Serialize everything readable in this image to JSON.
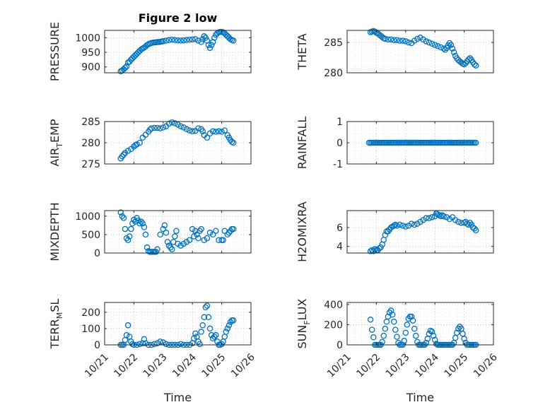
{
  "figure_title": "Figure 2 low",
  "marker_color": "#0072BD",
  "chart_data": [
    {
      "type": "scatter",
      "name": "PRESSURE",
      "ylabel": "PRESSURE",
      "xlim": [
        0,
        5
      ],
      "ylim": [
        880,
        1025
      ],
      "yticks": [
        900,
        950,
        1000
      ],
      "title": "Figure 2 low",
      "xlabel": "",
      "xticklabels": [],
      "x": [
        0.55,
        0.6,
        0.65,
        0.7,
        0.75,
        0.8,
        0.85,
        0.9,
        0.95,
        1.0,
        1.05,
        1.1,
        1.15,
        1.2,
        1.25,
        1.3,
        1.35,
        1.4,
        1.45,
        1.5,
        1.55,
        1.6,
        1.65,
        1.7,
        1.75,
        1.8,
        1.85,
        1.9,
        1.95,
        2.0,
        2.1,
        2.2,
        2.3,
        2.4,
        2.5,
        2.6,
        2.7,
        2.8,
        2.9,
        3.0,
        3.1,
        3.2,
        3.3,
        3.35,
        3.4,
        3.45,
        3.5,
        3.55,
        3.6,
        3.65,
        3.7,
        3.75,
        3.8,
        3.85,
        3.9,
        3.95,
        4.0,
        4.05,
        4.1,
        4.15,
        4.2,
        4.25,
        4.3,
        4.35,
        4.4
      ],
      "y": [
        885,
        888,
        892,
        897,
        902,
        915,
        918,
        925,
        930,
        935,
        940,
        945,
        950,
        955,
        960,
        963,
        966,
        970,
        975,
        978,
        980,
        982,
        983,
        984,
        984,
        985,
        985,
        986,
        987,
        988,
        990,
        992,
        993,
        992,
        991,
        990,
        991,
        992,
        993,
        994,
        995,
        990,
        985,
        995,
        1005,
        1000,
        990,
        975,
        965,
        975,
        985,
        1000,
        1010,
        1015,
        1018,
        1020,
        1020,
        1018,
        1015,
        1010,
        1005,
        1000,
        995,
        992,
        990
      ]
    },
    {
      "type": "scatter",
      "name": "THETA",
      "ylabel": "THETA",
      "xlim": [
        0,
        5
      ],
      "ylim": [
        280,
        287
      ],
      "yticks": [
        280,
        285
      ],
      "xlabel": "",
      "xticklabels": [],
      "x": [
        0.8,
        0.85,
        0.9,
        0.95,
        1.0,
        1.05,
        1.1,
        1.15,
        1.2,
        1.25,
        1.3,
        1.4,
        1.5,
        1.6,
        1.7,
        1.8,
        1.9,
        2.0,
        2.1,
        2.2,
        2.3,
        2.4,
        2.5,
        2.6,
        2.7,
        2.8,
        2.9,
        3.0,
        3.1,
        3.2,
        3.3,
        3.35,
        3.4,
        3.45,
        3.5,
        3.55,
        3.6,
        3.65,
        3.7,
        3.75,
        3.8,
        3.85,
        3.9,
        3.95,
        4.0,
        4.05,
        4.1,
        4.15,
        4.2,
        4.25,
        4.3,
        4.35,
        4.4
      ],
      "y": [
        286.7,
        286.8,
        286.9,
        286.8,
        286.6,
        286.5,
        286.3,
        286.1,
        285.9,
        285.7,
        285.6,
        285.5,
        285.5,
        285.4,
        285.4,
        285.3,
        285.3,
        285.2,
        285.0,
        284.9,
        285.3,
        285.6,
        285.8,
        285.5,
        285.2,
        285.0,
        284.8,
        284.6,
        284.4,
        284.2,
        284.0,
        283.8,
        284.1,
        284.5,
        284.9,
        284.6,
        284.0,
        283.4,
        282.8,
        282.4,
        282.1,
        281.9,
        281.7,
        281.5,
        281.4,
        281.6,
        281.9,
        282.2,
        282.4,
        282.1,
        281.7,
        281.4,
        281.2
      ]
    },
    {
      "type": "scatter",
      "name": "AIR_TEMP",
      "ylabel": "AIR_TEMP",
      "xlim": [
        0,
        5
      ],
      "ylim": [
        275,
        285
      ],
      "yticks": [
        275,
        280,
        285
      ],
      "xlabel": "",
      "xticklabels": [],
      "x": [
        0.55,
        0.6,
        0.65,
        0.7,
        0.8,
        0.9,
        1.0,
        1.05,
        1.1,
        1.2,
        1.3,
        1.4,
        1.5,
        1.55,
        1.6,
        1.7,
        1.8,
        1.9,
        2.0,
        2.1,
        2.2,
        2.3,
        2.4,
        2.5,
        2.6,
        2.7,
        2.8,
        2.9,
        3.0,
        3.1,
        3.2,
        3.3,
        3.35,
        3.4,
        3.5,
        3.6,
        3.7,
        3.8,
        3.9,
        4.0,
        4.1,
        4.2,
        4.25,
        4.3,
        4.35,
        4.4
      ],
      "y": [
        276.3,
        276.8,
        277.2,
        277.6,
        278.1,
        278.5,
        279.1,
        279.4,
        279.6,
        280.0,
        281.2,
        281.9,
        282.6,
        283.1,
        283.4,
        283.5,
        283.5,
        283.4,
        283.6,
        283.9,
        284.5,
        284.8,
        284.6,
        284.3,
        283.9,
        283.6,
        283.2,
        282.9,
        282.7,
        282.8,
        283.4,
        283.2,
        282.7,
        281.8,
        281.2,
        282.2,
        282.7,
        282.6,
        282.7,
        282.6,
        282.9,
        281.8,
        281.2,
        280.6,
        280.2,
        280.0
      ]
    },
    {
      "type": "scatter",
      "name": "RAINFALL",
      "ylabel": "RAINFALL",
      "xlim": [
        0,
        5
      ],
      "ylim": [
        -1,
        1
      ],
      "yticks": [
        -1,
        0,
        1
      ],
      "xlabel": "",
      "xticklabels": [],
      "x": [
        0.75,
        0.8,
        0.85,
        0.9,
        0.95,
        1.0,
        1.05,
        1.1,
        1.15,
        1.2,
        1.25,
        1.3,
        1.35,
        1.4,
        1.45,
        1.5,
        1.55,
        1.6,
        1.65,
        1.7,
        1.75,
        1.8,
        1.85,
        1.9,
        1.95,
        2.0,
        2.05,
        2.1,
        2.15,
        2.2,
        2.25,
        2.3,
        2.35,
        2.4,
        2.45,
        2.5,
        2.55,
        2.6,
        2.65,
        2.7,
        2.75,
        2.8,
        2.85,
        2.9,
        2.95,
        3.0,
        3.05,
        3.1,
        3.15,
        3.2,
        3.25,
        3.3,
        3.35,
        3.4,
        3.45,
        3.5,
        3.55,
        3.6,
        3.65,
        3.7,
        3.75,
        3.8,
        3.85,
        3.9,
        3.95,
        4.0,
        4.05,
        4.1,
        4.15,
        4.2,
        4.25,
        4.3,
        4.35,
        4.4
      ],
      "y": [
        0,
        0,
        0,
        0,
        0,
        0,
        0,
        0,
        0,
        0,
        0,
        0,
        0,
        0,
        0,
        0,
        0,
        0,
        0,
        0,
        0,
        0,
        0,
        0,
        0,
        0,
        0,
        0,
        0,
        0,
        0,
        0,
        0,
        0,
        0,
        0,
        0,
        0,
        0,
        0,
        0,
        0,
        0,
        0,
        0,
        0,
        0,
        0,
        0,
        0,
        0,
        0,
        0,
        0,
        0,
        0,
        0,
        0,
        0,
        0,
        0,
        0,
        0,
        0,
        0,
        0,
        0,
        0,
        0,
        0,
        0,
        0,
        0,
        0
      ]
    },
    {
      "type": "scatter",
      "name": "MIXDEPTH",
      "ylabel": "MIXDEPTH",
      "xlim": [
        0,
        5
      ],
      "ylim": [
        0,
        1150
      ],
      "yticks": [
        0,
        500,
        1000
      ],
      "xlabel": "",
      "xticklabels": [],
      "x": [
        0.55,
        0.6,
        0.65,
        0.7,
        0.75,
        0.8,
        0.85,
        0.9,
        0.95,
        1.0,
        1.05,
        1.1,
        1.15,
        1.2,
        1.25,
        1.3,
        1.35,
        1.4,
        1.45,
        1.5,
        1.55,
        1.6,
        1.65,
        1.7,
        1.75,
        1.8,
        1.9,
        2.0,
        2.05,
        2.1,
        2.15,
        2.2,
        2.25,
        2.3,
        2.35,
        2.4,
        2.45,
        2.5,
        2.6,
        2.7,
        2.8,
        2.9,
        3.0,
        3.05,
        3.1,
        3.15,
        3.2,
        3.25,
        3.3,
        3.4,
        3.5,
        3.6,
        3.7,
        3.8,
        3.9,
        4.0,
        4.05,
        4.1,
        4.2,
        4.25,
        4.3,
        4.35,
        4.4
      ],
      "y": [
        1100,
        1000,
        950,
        650,
        400,
        350,
        450,
        650,
        800,
        900,
        850,
        950,
        880,
        800,
        850,
        800,
        700,
        500,
        150,
        50,
        30,
        30,
        30,
        30,
        30,
        100,
        500,
        650,
        750,
        550,
        300,
        200,
        150,
        100,
        300,
        450,
        600,
        250,
        200,
        250,
        300,
        350,
        650,
        450,
        600,
        500,
        400,
        600,
        650,
        350,
        400,
        550,
        500,
        600,
        350,
        350,
        350,
        600,
        500,
        550,
        600,
        650,
        650
      ]
    },
    {
      "type": "scatter",
      "name": "H2OMIXRA",
      "ylabel": "H2OMIXRA",
      "xlim": [
        0,
        5
      ],
      "ylim": [
        3.3,
        7.8
      ],
      "yticks": [
        4,
        6
      ],
      "xlabel": "",
      "xticklabels": [],
      "x": [
        0.8,
        0.85,
        0.9,
        0.95,
        1.0,
        1.05,
        1.1,
        1.15,
        1.2,
        1.25,
        1.3,
        1.35,
        1.4,
        1.45,
        1.5,
        1.55,
        1.6,
        1.65,
        1.7,
        1.8,
        1.9,
        2.0,
        2.1,
        2.2,
        2.3,
        2.4,
        2.5,
        2.6,
        2.7,
        2.8,
        2.9,
        3.0,
        3.05,
        3.1,
        3.15,
        3.2,
        3.25,
        3.3,
        3.4,
        3.5,
        3.6,
        3.7,
        3.8,
        3.9,
        4.0,
        4.05,
        4.1,
        4.15,
        4.2,
        4.25,
        4.3,
        4.35,
        4.4
      ],
      "y": [
        3.5,
        3.6,
        3.5,
        3.7,
        3.6,
        3.6,
        3.8,
        3.9,
        4.2,
        4.7,
        5.2,
        5.6,
        5.6,
        5.8,
        6.0,
        6.1,
        6.2,
        6.3,
        6.2,
        6.3,
        6.2,
        6.1,
        6.2,
        6.4,
        6.3,
        6.4,
        6.6,
        6.8,
        7.0,
        7.0,
        7.1,
        7.2,
        7.5,
        7.4,
        7.3,
        7.2,
        7.3,
        7.2,
        7.1,
        6.9,
        7.1,
        6.8,
        6.6,
        6.5,
        6.5,
        6.6,
        6.4,
        6.3,
        6.5,
        6.3,
        6.0,
        5.9,
        5.7
      ]
    },
    {
      "type": "scatter",
      "name": "TERR_MSL",
      "ylabel": "TERR_MSL",
      "xlim": [
        0,
        5
      ],
      "ylim": [
        0,
        260
      ],
      "yticks": [
        0,
        100,
        200
      ],
      "xlabel": "Time",
      "xticklabels": [
        "10/21",
        "10/22",
        "10/23",
        "10/24",
        "10/25",
        "10/26"
      ],
      "x": [
        0.55,
        0.6,
        0.65,
        0.7,
        0.75,
        0.8,
        0.85,
        0.9,
        0.95,
        1.0,
        1.1,
        1.2,
        1.3,
        1.35,
        1.4,
        1.5,
        1.6,
        1.7,
        1.8,
        1.9,
        2.0,
        2.1,
        2.2,
        2.3,
        2.4,
        2.5,
        2.6,
        2.7,
        2.8,
        2.9,
        3.0,
        3.05,
        3.1,
        3.15,
        3.2,
        3.25,
        3.3,
        3.35,
        3.4,
        3.45,
        3.5,
        3.55,
        3.6,
        3.65,
        3.7,
        3.75,
        3.8,
        3.85,
        3.9,
        3.95,
        4.0,
        4.05,
        4.1,
        4.15,
        4.2,
        4.25,
        4.3,
        4.35,
        4.4
      ],
      "y": [
        0,
        0,
        0,
        30,
        60,
        120,
        50,
        20,
        5,
        0,
        0,
        5,
        10,
        35,
        10,
        0,
        0,
        5,
        10,
        20,
        15,
        5,
        0,
        0,
        0,
        0,
        5,
        0,
        0,
        0,
        10,
        40,
        70,
        50,
        20,
        5,
        80,
        120,
        170,
        230,
        240,
        170,
        100,
        60,
        40,
        50,
        60,
        20,
        0,
        0,
        5,
        20,
        50,
        80,
        100,
        120,
        140,
        150,
        150
      ]
    },
    {
      "type": "scatter",
      "name": "SUN_FLUX",
      "ylabel": "SUN_FLUX",
      "xlim": [
        0,
        5
      ],
      "ylim": [
        0,
        420
      ],
      "yticks": [
        0,
        200,
        400
      ],
      "xlabel": "Time",
      "xticklabels": [
        "10/21",
        "10/22",
        "10/23",
        "10/24",
        "10/25",
        "10/26"
      ],
      "x": [
        0.8,
        0.85,
        0.9,
        0.95,
        1.0,
        1.05,
        1.1,
        1.15,
        1.2,
        1.25,
        1.3,
        1.35,
        1.4,
        1.45,
        1.5,
        1.55,
        1.6,
        1.65,
        1.7,
        1.75,
        1.8,
        1.85,
        1.9,
        1.95,
        2.0,
        2.05,
        2.1,
        2.15,
        2.2,
        2.25,
        2.3,
        2.35,
        2.4,
        2.45,
        2.5,
        2.55,
        2.6,
        2.65,
        2.7,
        2.75,
        2.8,
        2.85,
        2.9,
        2.95,
        3.0,
        3.05,
        3.1,
        3.15,
        3.2,
        3.25,
        3.3,
        3.35,
        3.4,
        3.45,
        3.5,
        3.55,
        3.6,
        3.65,
        3.7,
        3.75,
        3.8,
        3.85,
        3.9,
        3.95,
        4.0,
        4.05,
        4.1,
        4.15,
        4.2,
        4.25,
        4.3,
        4.35,
        4.4
      ],
      "y": [
        250,
        150,
        75,
        0,
        0,
        0,
        0,
        0,
        30,
        90,
        160,
        230,
        280,
        320,
        340,
        300,
        230,
        150,
        80,
        20,
        0,
        0,
        0,
        40,
        120,
        200,
        260,
        280,
        280,
        240,
        160,
        90,
        30,
        0,
        0,
        0,
        0,
        0,
        20,
        60,
        110,
        140,
        130,
        90,
        50,
        10,
        0,
        0,
        0,
        0,
        0,
        0,
        0,
        0,
        0,
        0,
        0,
        20,
        70,
        120,
        160,
        180,
        160,
        110,
        60,
        20,
        0,
        0,
        0,
        0,
        0,
        0,
        0
      ]
    }
  ]
}
